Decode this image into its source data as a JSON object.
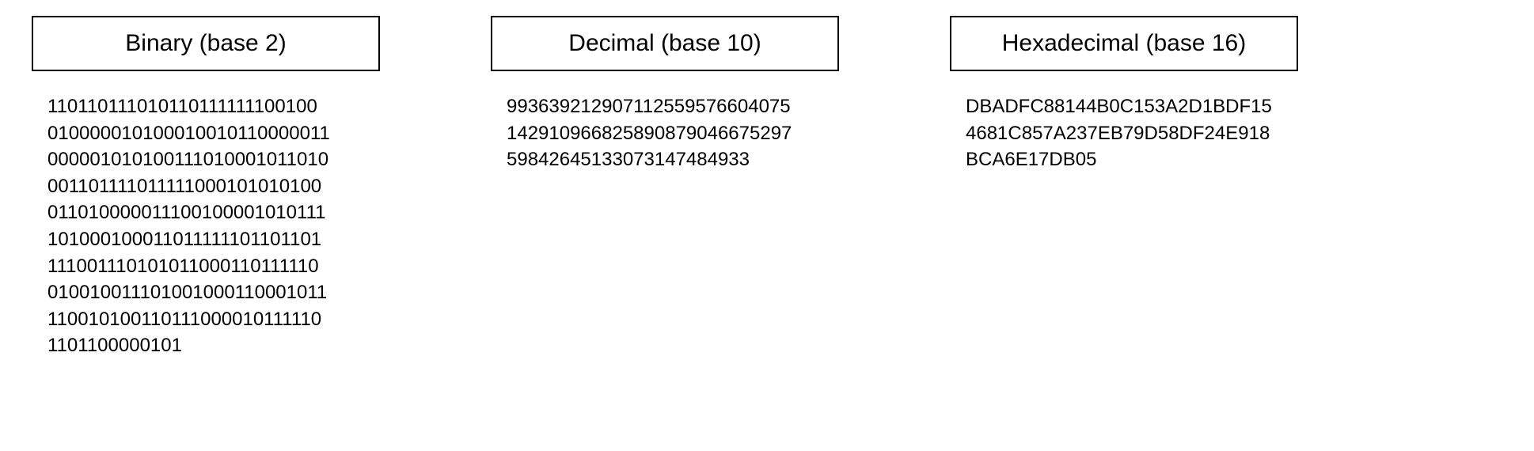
{
  "columns": [
    {
      "title": "Binary (base 2)",
      "lines": [
        "110110111010110111111100100",
        "010000010100010010110000011",
        "000001010100111010001011010",
        "001101111011111000101010100",
        "011010000011100100001010111",
        "101000100011011111101101101",
        "111001110101011000110111110",
        "010010011101001000110001011",
        "110010100110111000010111110",
        "1101100000101"
      ]
    },
    {
      "title": "Decimal (base 10)",
      "lines": [
        "993639212907112559576604075",
        "142910966825890879046675297",
        "59842645133073147484933"
      ]
    },
    {
      "title": "Hexadecimal (base 16)",
      "lines": [
        "DBADFC88144B0C153A2D1BDF15",
        "4681C857A237EB79D58DF24E918",
        "BCA6E17DB05"
      ]
    }
  ],
  "styling": {
    "background_color": "#ffffff",
    "text_color": "#000000",
    "border_color": "#000000",
    "border_width": 2,
    "header_fontsize": 30,
    "value_fontsize": 24,
    "font_family": "Arial, Helvetica, sans-serif",
    "column_gap": 140,
    "box_min_width": 440
  }
}
